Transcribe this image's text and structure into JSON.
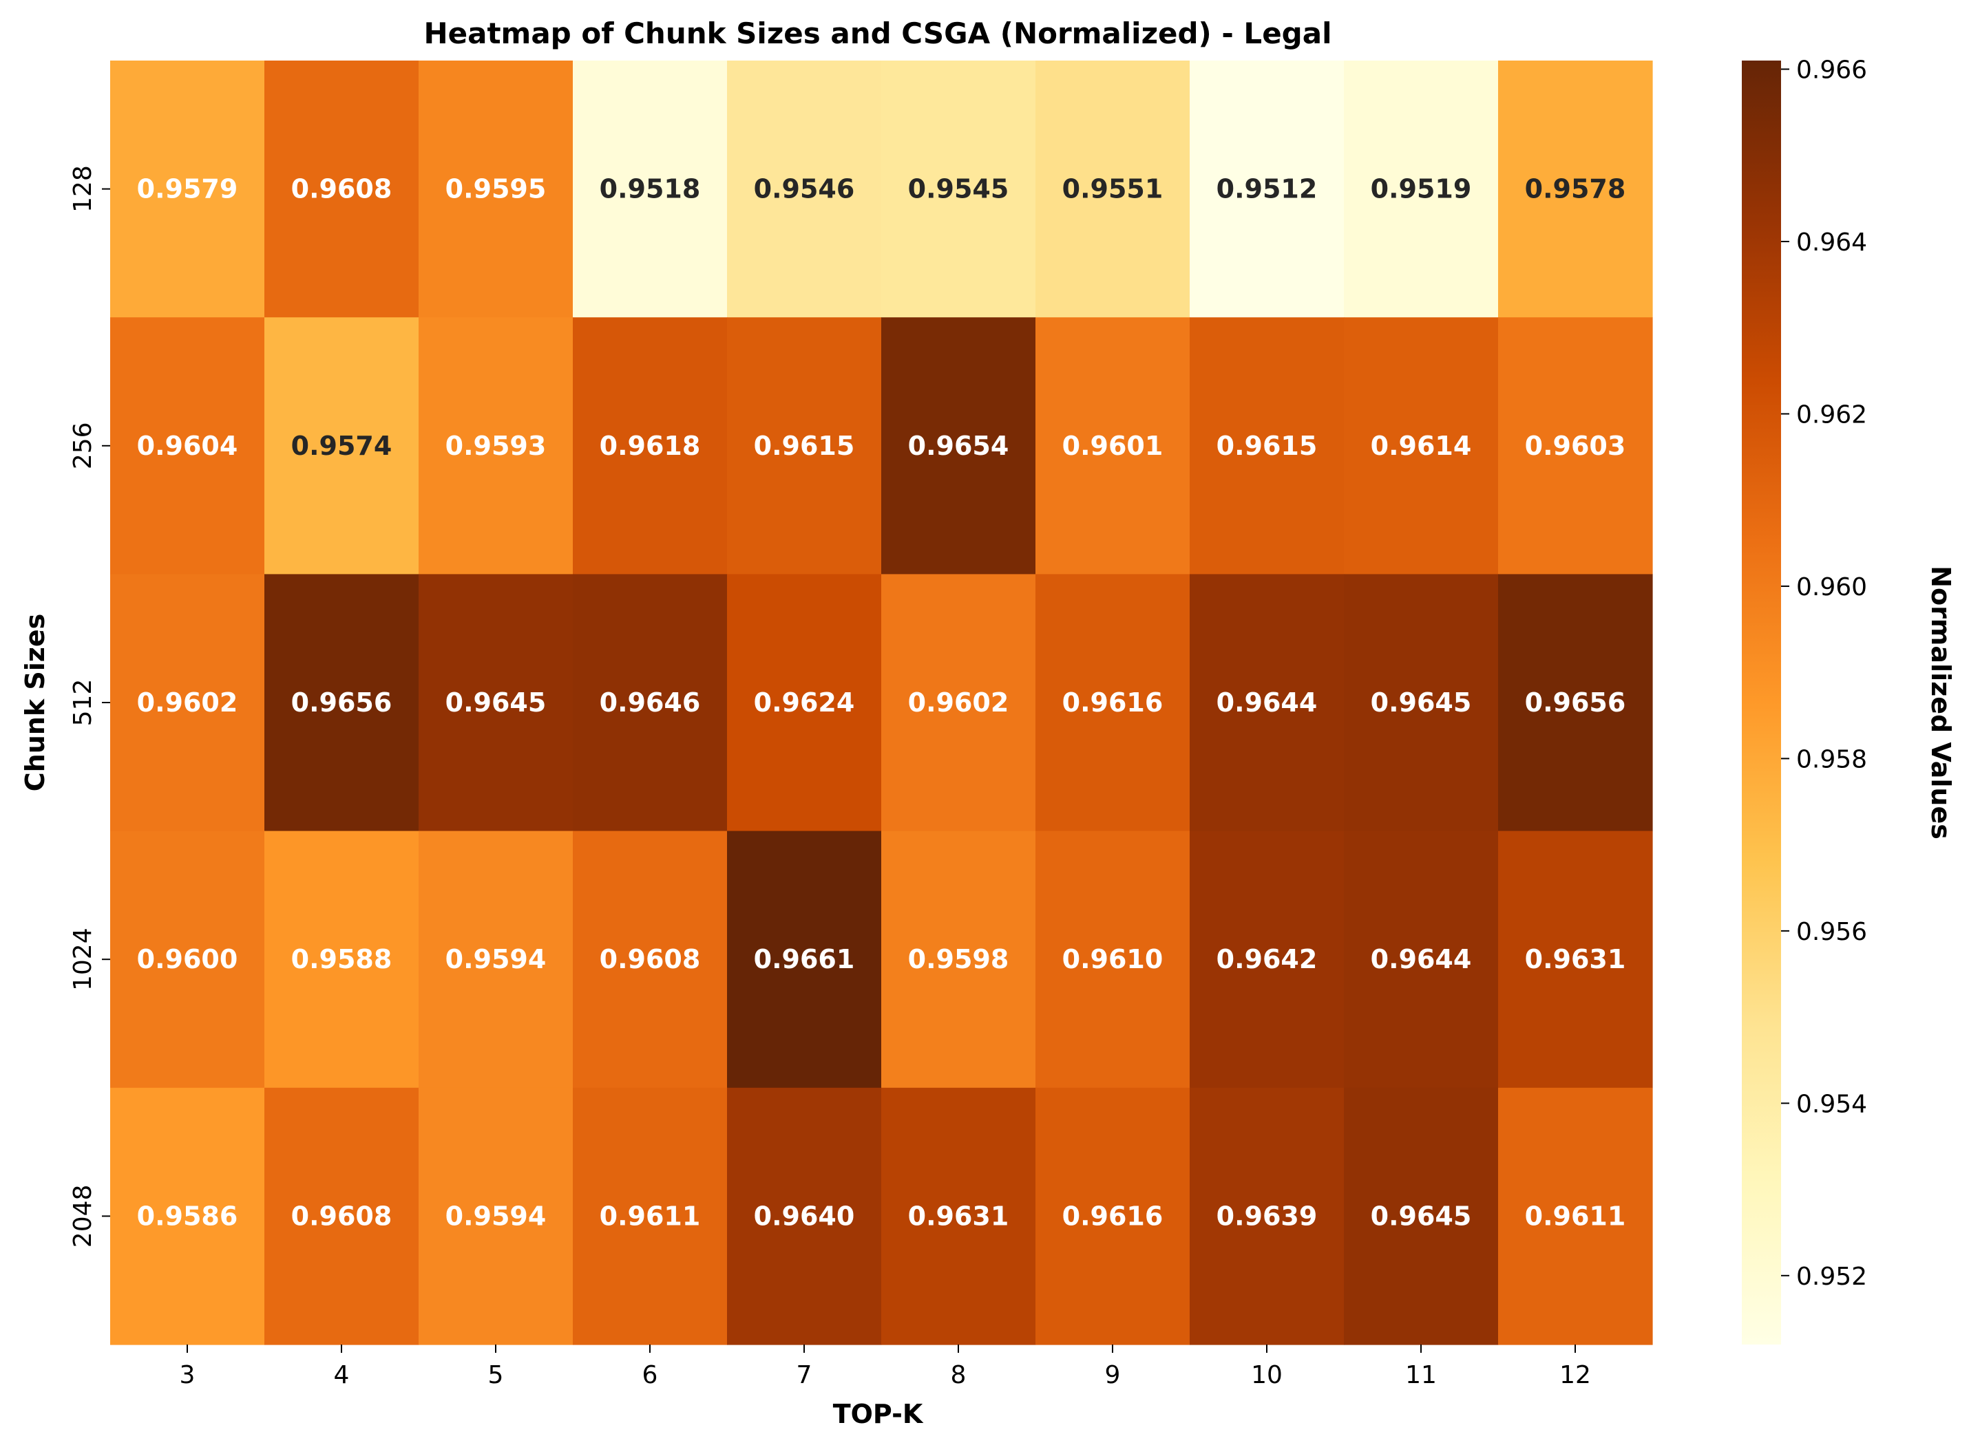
{
  "chart_data": {
    "type": "heatmap",
    "title": "Heatmap of Chunk Sizes and CSGA (Normalized) - Legal",
    "xlabel": "TOP-K",
    "ylabel": "Chunk Sizes",
    "colorbar_label": "Normalized Values",
    "x": [
      "3",
      "4",
      "5",
      "6",
      "7",
      "8",
      "9",
      "10",
      "11",
      "12"
    ],
    "y": [
      "128",
      "256",
      "512",
      "1024",
      "2048"
    ],
    "values": [
      [
        0.9579,
        0.9608,
        0.9595,
        0.9518,
        0.9546,
        0.9545,
        0.9551,
        0.9512,
        0.9519,
        0.9578
      ],
      [
        0.9604,
        0.9574,
        0.9593,
        0.9618,
        0.9615,
        0.9654,
        0.9601,
        0.9615,
        0.9614,
        0.9603
      ],
      [
        0.9602,
        0.9656,
        0.9645,
        0.9646,
        0.9624,
        0.9602,
        0.9616,
        0.9644,
        0.9645,
        0.9656
      ],
      [
        0.96,
        0.9588,
        0.9594,
        0.9608,
        0.9661,
        0.9598,
        0.961,
        0.9642,
        0.9644,
        0.9631
      ],
      [
        0.9586,
        0.9608,
        0.9594,
        0.9611,
        0.964,
        0.9631,
        0.9616,
        0.9639,
        0.9645,
        0.9611
      ]
    ],
    "cell_labels": [
      [
        "0.9579",
        "0.9608",
        "0.9595",
        "0.9518",
        "0.9546",
        "0.9545",
        "0.9551",
        "0.9512",
        "0.9519",
        "0.9578"
      ],
      [
        "0.9604",
        "0.9574",
        "0.9593",
        "0.9618",
        "0.9615",
        "0.9654",
        "0.9601",
        "0.9615",
        "0.9614",
        "0.9603"
      ],
      [
        "0.9602",
        "0.9656",
        "0.9645",
        "0.9646",
        "0.9624",
        "0.9602",
        "0.9616",
        "0.9644",
        "0.9645",
        "0.9656"
      ],
      [
        "0.9600",
        "0.9588",
        "0.9594",
        "0.9608",
        "0.9661",
        "0.9598",
        "0.9610",
        "0.9642",
        "0.9644",
        "0.9631"
      ],
      [
        "0.9586",
        "0.9608",
        "0.9594",
        "0.9611",
        "0.9640",
        "0.9631",
        "0.9616",
        "0.9639",
        "0.9645",
        "0.9611"
      ]
    ],
    "colormap": "YlOrBr",
    "color_range": [
      0.9512,
      0.9661
    ],
    "colorbar_ticks": [
      "0.952",
      "0.954",
      "0.956",
      "0.958",
      "0.960",
      "0.962",
      "0.964",
      "0.966"
    ],
    "colorbar_tick_values": [
      0.952,
      0.954,
      0.956,
      0.958,
      0.96,
      0.962,
      0.964,
      0.966
    ],
    "colors": {
      "label_light": "#ffffff",
      "label_dark": "#262626",
      "axis": "#000000",
      "colormap_stops": [
        "#ffffe5",
        "#fff7bc",
        "#fee391",
        "#fec44f",
        "#fe9929",
        "#ec7014",
        "#cc4c02",
        "#993404",
        "#662506"
      ]
    }
  }
}
